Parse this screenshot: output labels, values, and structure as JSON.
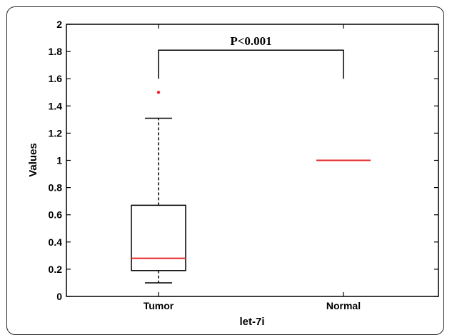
{
  "chart_data": {
    "type": "boxplot",
    "title": "",
    "xlabel": "let-7i",
    "ylabel": "Values",
    "ylim": [
      0,
      2
    ],
    "yticks": [
      0,
      0.2,
      0.4,
      0.6,
      0.8,
      1,
      1.2,
      1.4,
      1.6,
      1.8,
      2
    ],
    "ytick_labels": [
      "0",
      "0.2",
      "0.4",
      "0.6",
      "0.8",
      "1",
      "1.2",
      "1.4",
      "1.6",
      "1.8",
      "2"
    ],
    "categories": [
      "Tumor",
      "Normal"
    ],
    "boxes": [
      {
        "category": "Tumor",
        "whisker_low": 0.1,
        "q1": 0.19,
        "median": 0.28,
        "q3": 0.67,
        "whisker_high": 1.31,
        "outliers": [
          1.5
        ]
      },
      {
        "category": "Normal",
        "whisker_low": 1,
        "q1": 1,
        "median": 1,
        "q3": 1,
        "whisker_high": 1,
        "outliers": []
      }
    ],
    "annotation": {
      "text": "P<0.001",
      "bracket_top": 1.81,
      "left_end": 1.6,
      "right_end": 1.6
    },
    "grid": false,
    "colors": {
      "box": "#000000",
      "median": "#e8262a",
      "outlier": "#e8262a"
    }
  }
}
